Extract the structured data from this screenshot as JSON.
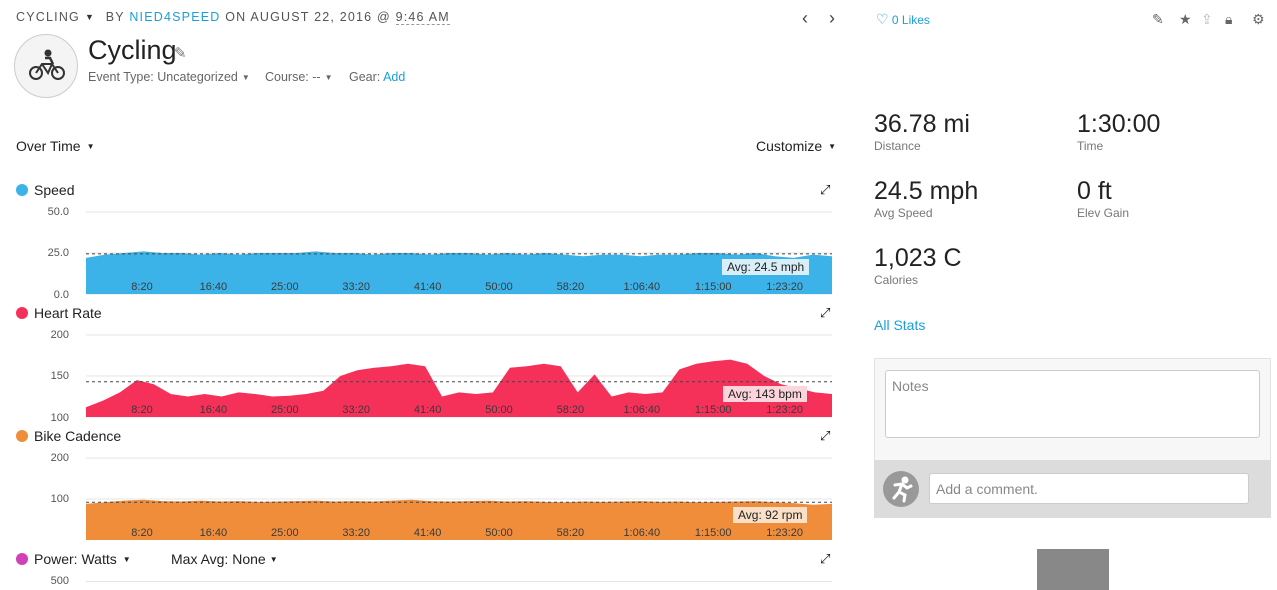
{
  "header": {
    "activity_type": "CYCLING",
    "by_text": "BY",
    "author": "NIED4SPEED",
    "on_text": "ON AUGUST 22, 2016 @",
    "time": "9:46 AM",
    "title": "Cycling",
    "event_type_label": "Event Type: Uncategorized",
    "course_label": "Course: --",
    "gear_label": "Gear:",
    "gear_add": "Add",
    "likes": "0 Likes"
  },
  "controls": {
    "over_time": "Over Time",
    "customize": "Customize"
  },
  "x_ticks": [
    "8:20",
    "16:40",
    "25:00",
    "33:20",
    "41:40",
    "50:00",
    "58:20",
    "1:06:40",
    "1:15:00",
    "1:23:20"
  ],
  "chart_data": [
    {
      "type": "area",
      "name": "Speed",
      "color": "#3bb3e8",
      "y_ticks": [
        "50.0",
        "25.0",
        "0.0"
      ],
      "ylim": [
        0,
        50
      ],
      "average": 24.5,
      "avg_label": "Avg: 24.5 mph",
      "avg_bg": "#d8eff9",
      "values": [
        22,
        24,
        25,
        26,
        25,
        25,
        24,
        25,
        24,
        25,
        25,
        25,
        26,
        25,
        25,
        24,
        25,
        25,
        24,
        25,
        25,
        24,
        25,
        24,
        25,
        24,
        23,
        24,
        24,
        23,
        24,
        24,
        25,
        25,
        24,
        25,
        23,
        22,
        24,
        23
      ]
    },
    {
      "type": "area",
      "name": "Heart Rate",
      "color": "#f5315a",
      "y_ticks": [
        "200",
        "150",
        "100"
      ],
      "ylim": [
        100,
        200
      ],
      "average": 143,
      "avg_label": "Avg: 143 bpm",
      "avg_bg": "#fbd4dc",
      "values": [
        112,
        120,
        130,
        145,
        140,
        128,
        125,
        128,
        125,
        130,
        128,
        125,
        126,
        128,
        132,
        150,
        157,
        160,
        162,
        165,
        162,
        125,
        130,
        128,
        130,
        160,
        162,
        165,
        162,
        130,
        152,
        125,
        130,
        128,
        130,
        158,
        165,
        168,
        170,
        165,
        150,
        140,
        135,
        130,
        128
      ]
    },
    {
      "type": "area",
      "name": "Bike Cadence",
      "color": "#ef8d3a",
      "y_ticks": [
        "200",
        "100"
      ],
      "ylim": [
        0,
        200
      ],
      "average": 92,
      "avg_label": "Avg: 92 rpm",
      "avg_bg": "#fbdfc6",
      "values": [
        88,
        92,
        96,
        98,
        95,
        94,
        96,
        94,
        95,
        93,
        94,
        95,
        96,
        94,
        95,
        94,
        96,
        98,
        95,
        94,
        95,
        96,
        94,
        95,
        93,
        92,
        94,
        93,
        94,
        95,
        93,
        94,
        92,
        93,
        94,
        95,
        92,
        90,
        86,
        88
      ]
    }
  ],
  "power": {
    "label": "Power: Watts",
    "max_avg": "Max Avg: None",
    "color": "#d33fb7",
    "y_tick": "500"
  },
  "stats": [
    {
      "value": "36.78 mi",
      "label": "Distance"
    },
    {
      "value": "1:30:00",
      "label": "Time"
    },
    {
      "value": "24.5 mph",
      "label": "Avg Speed"
    },
    {
      "value": "0 ft",
      "label": "Elev Gain"
    },
    {
      "value": "1,023 C",
      "label": "Calories"
    }
  ],
  "all_stats": "All Stats",
  "notes_placeholder": "Notes",
  "comment_placeholder": "Add a comment."
}
